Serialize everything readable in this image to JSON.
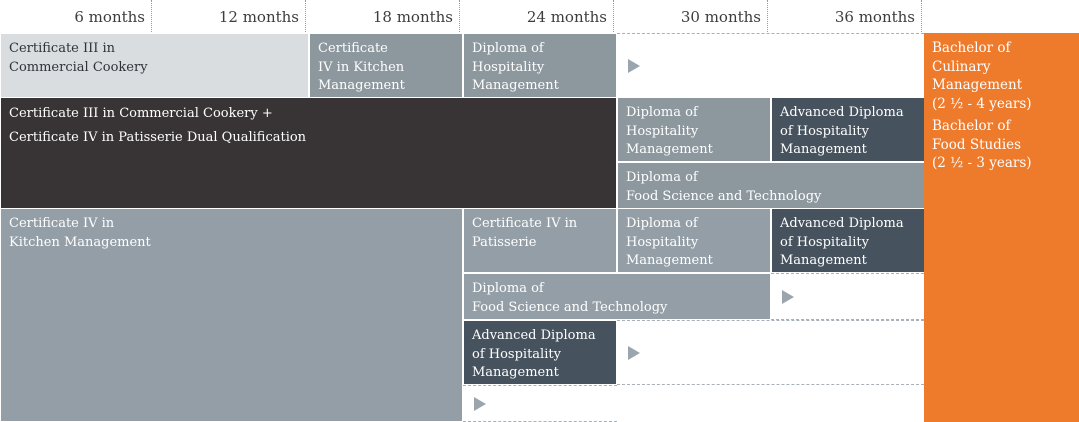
{
  "header": {
    "months": [
      "6 months",
      "12 months",
      "18 months",
      "24 months",
      "30 months",
      "36 months"
    ]
  },
  "pathways": {
    "row1": {
      "cert3_cookery": [
        "Certificate III in",
        "Commercial Cookery"
      ],
      "cert4_kitchen": [
        "Certificate",
        "IV in Kitchen",
        "Management"
      ],
      "diploma_hosp": [
        "Diploma of",
        "Hospitality",
        "Management"
      ]
    },
    "row2": {
      "dual_qualification": [
        "Certificate III in Commercial Cookery +",
        "Certificate IV in Patisserie Dual Qualification"
      ],
      "diploma_hosp": [
        "Diploma of",
        "Hospitality",
        "Management"
      ],
      "adv_diploma_hosp": [
        "Advanced Diploma",
        "of Hospitality",
        "Management"
      ],
      "diploma_food_sci": [
        "Diploma of",
        "Food Science and Technology"
      ]
    },
    "row3": {
      "cert4_kitchen": [
        "Certificate IV in",
        "Kitchen Management"
      ],
      "cert4_patisserie": [
        "Certificate IV in",
        "Patisserie"
      ],
      "diploma_hosp": [
        "Diploma of",
        "Hospitality",
        "Management"
      ],
      "adv_diploma_hosp": [
        "Advanced Diploma",
        "of Hospitality",
        "Management"
      ],
      "diploma_food_sci": [
        "Diploma of",
        "Food Science and Technology"
      ],
      "adv_diploma_hosp_2": [
        "Advanced Diploma",
        "of Hospitality",
        "Management"
      ]
    }
  },
  "bachelor": {
    "culinary": [
      "Bachelor of",
      "Culinary",
      "Management",
      "(2 ½ - 4 years)"
    ],
    "food_studies": [
      "Bachelor of",
      "Food Studies",
      "(2 ½ - 3 years)"
    ]
  },
  "colors": {
    "light": "#d9dde0",
    "mid": "#8c979e",
    "slate": "#939ea6",
    "dark": "#46525d",
    "black": "#383435",
    "orange": "#ee7a2c"
  },
  "icons": {
    "continue": "play-arrow-icon"
  }
}
